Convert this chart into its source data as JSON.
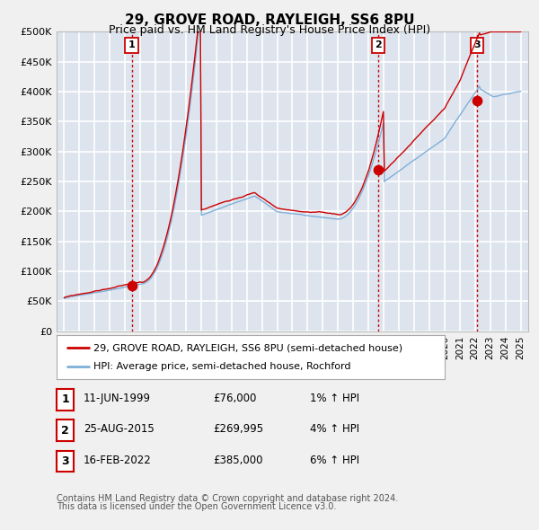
{
  "title": "29, GROVE ROAD, RAYLEIGH, SS6 8PU",
  "subtitle": "Price paid vs. HM Land Registry's House Price Index (HPI)",
  "ylabel_ticks": [
    "£0",
    "£50K",
    "£100K",
    "£150K",
    "£200K",
    "£250K",
    "£300K",
    "£350K",
    "£400K",
    "£450K",
    "£500K"
  ],
  "ytick_values": [
    0,
    50000,
    100000,
    150000,
    200000,
    250000,
    300000,
    350000,
    400000,
    450000,
    500000
  ],
  "ylim": [
    0,
    500000
  ],
  "xlim_start": 1994.5,
  "xlim_end": 2025.5,
  "sale_date_1": 1999.44,
  "sale_date_2": 2015.65,
  "sale_date_3": 2022.12,
  "sale_price_1": 76000,
  "sale_price_2": 269995,
  "sale_price_3": 385000,
  "sale_labels": [
    "1",
    "2",
    "3"
  ],
  "vline_color": "#cc0000",
  "sale_marker_color": "#cc0000",
  "sale_marker_size": 55,
  "legend_label_red": "29, GROVE ROAD, RAYLEIGH, SS6 8PU (semi-detached house)",
  "legend_label_blue": "HPI: Average price, semi-detached house, Rochford",
  "table_rows": [
    [
      "1",
      "11-JUN-1999",
      "£76,000",
      "1% ↑ HPI"
    ],
    [
      "2",
      "25-AUG-2015",
      "£269,995",
      "4% ↑ HPI"
    ],
    [
      "3",
      "16-FEB-2022",
      "£385,000",
      "6% ↑ HPI"
    ]
  ],
  "footer_line1": "Contains HM Land Registry data © Crown copyright and database right 2024.",
  "footer_line2": "This data is licensed under the Open Government Licence v3.0.",
  "bg_color": "#f0f0f0",
  "plot_bg_color": "#dde4ee",
  "grid_color": "#ffffff",
  "red_line_color": "#cc0000",
  "blue_line_color": "#7fb0d8",
  "title_fontsize": 11,
  "subtitle_fontsize": 9,
  "ytick_fontsize": 8,
  "xtick_fontsize": 7.5
}
